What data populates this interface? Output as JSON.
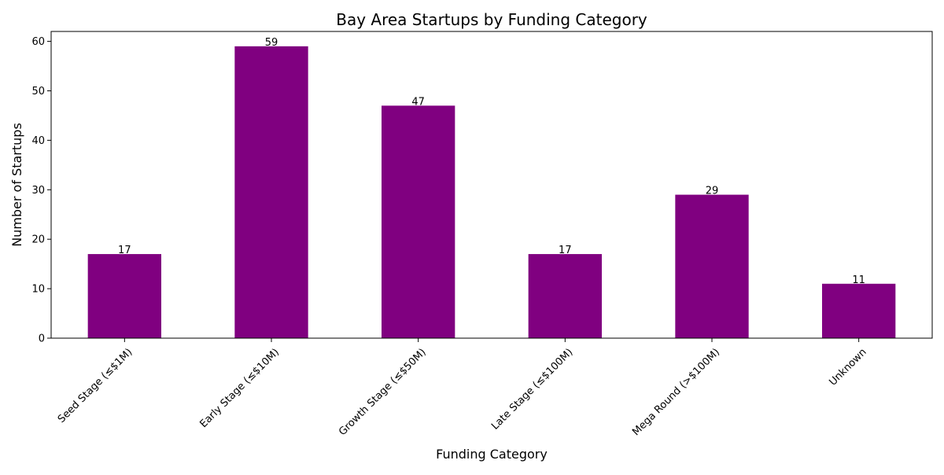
{
  "chart_data": {
    "type": "bar",
    "title": "Bay Area Startups by Funding Category",
    "xlabel": "Funding Category",
    "ylabel": "Number of Startups",
    "categories": [
      "Seed Stage (≤$1M)",
      "Early Stage (≤$10M)",
      "Growth Stage (≤$50M)",
      "Late Stage (≤$100M)",
      "Mega Round (>$100M)",
      "Unknown"
    ],
    "values": [
      17,
      59,
      47,
      17,
      29,
      11
    ],
    "data_labels": [
      "17",
      "59",
      "47",
      "17",
      "29",
      "11"
    ],
    "ylim": [
      0,
      62
    ],
    "yticks": [
      0,
      10,
      20,
      30,
      40,
      50,
      60
    ],
    "grid": false,
    "legend": "none",
    "colors": {
      "bar": "#800080",
      "axis": "#000000",
      "background": "#ffffff"
    }
  }
}
